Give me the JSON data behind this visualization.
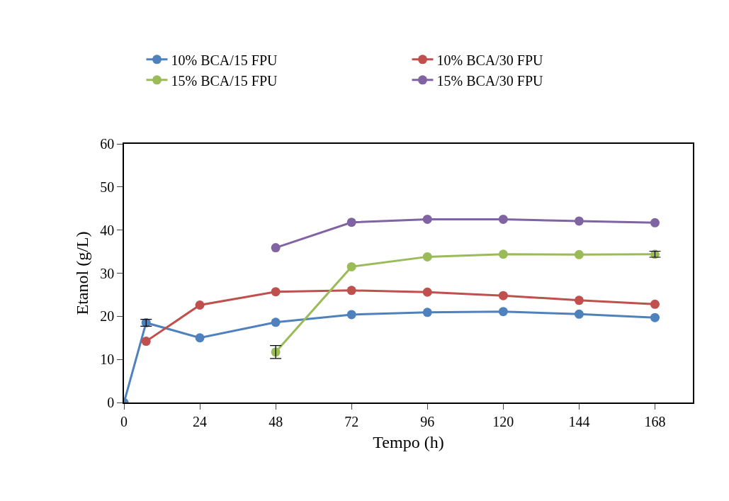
{
  "chart_data": {
    "type": "line",
    "xlabel": "Tempo (h)",
    "ylabel": "Etanol (g/L)",
    "xlim": [
      0,
      180
    ],
    "xticks": [
      0,
      24,
      48,
      72,
      96,
      120,
      144,
      168
    ],
    "ylim": [
      0,
      60
    ],
    "yticks": [
      0,
      10,
      20,
      30,
      40,
      50,
      60
    ],
    "grid": false,
    "legend": "top",
    "marker": "circle",
    "line_style": "solid",
    "series": [
      {
        "name": "10% BCA/15 FPU",
        "color": "#4f81bd",
        "x": [
          0,
          7,
          24,
          48,
          72,
          96,
          120,
          144,
          168
        ],
        "values": [
          0,
          18.5,
          15.0,
          18.6,
          20.4,
          20.9,
          21.1,
          20.5,
          19.7
        ],
        "errors": [
          null,
          0.8,
          null,
          null,
          null,
          null,
          null,
          null,
          null
        ]
      },
      {
        "name": "10% BCA/30 FPU",
        "color": "#c0504d",
        "x": [
          7,
          24,
          48,
          72,
          96,
          120,
          144,
          168
        ],
        "values": [
          14.2,
          22.6,
          25.7,
          26.0,
          25.6,
          24.8,
          23.7,
          22.8
        ]
      },
      {
        "name": "15% BCA/15 FPU",
        "color": "#9bbb59",
        "x": [
          48,
          72,
          96,
          120,
          144,
          168
        ],
        "values": [
          11.7,
          31.5,
          33.8,
          34.4,
          34.3,
          34.4
        ],
        "errors": [
          1.5,
          null,
          null,
          null,
          null,
          0.7
        ]
      },
      {
        "name": "15% BCA/30 FPU",
        "color": "#8064a2",
        "x": [
          48,
          72,
          96,
          120,
          144,
          168
        ],
        "values": [
          35.9,
          41.8,
          42.5,
          42.5,
          42.1,
          41.7
        ]
      }
    ]
  }
}
